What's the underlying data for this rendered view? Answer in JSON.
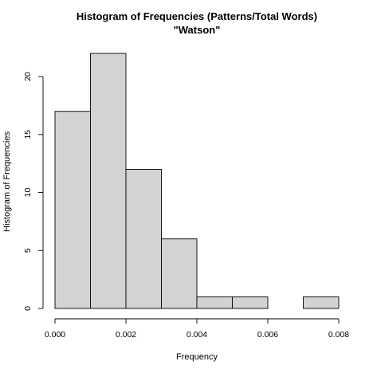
{
  "chart_data": {
    "type": "bar",
    "title": "Histogram of Frequencies (Patterns/Total Words)",
    "subtitle": "\"Watson\"",
    "xlabel": "Frequency",
    "ylabel": "Histogram of Frequencies",
    "xlim": [
      0.0,
      0.008
    ],
    "ylim": [
      0,
      22
    ],
    "x_ticks": [
      0.0,
      0.002,
      0.004,
      0.006,
      0.008
    ],
    "x_tick_labels": [
      "0.000",
      "0.002",
      "0.004",
      "0.006",
      "0.008"
    ],
    "y_ticks": [
      0,
      5,
      10,
      15,
      20
    ],
    "y_tick_labels": [
      "0",
      "5",
      "10",
      "15",
      "20"
    ],
    "bins": [
      {
        "start": 0.0,
        "end": 0.001,
        "value": 17
      },
      {
        "start": 0.001,
        "end": 0.002,
        "value": 22
      },
      {
        "start": 0.002,
        "end": 0.003,
        "value": 12
      },
      {
        "start": 0.003,
        "end": 0.004,
        "value": 6
      },
      {
        "start": 0.004,
        "end": 0.005,
        "value": 1
      },
      {
        "start": 0.005,
        "end": 0.006,
        "value": 1
      },
      {
        "start": 0.006,
        "end": 0.007,
        "value": 0
      },
      {
        "start": 0.007,
        "end": 0.008,
        "value": 1
      }
    ],
    "bar_color": "#d3d3d3",
    "bar_border_color": "#000000",
    "grid": false
  }
}
